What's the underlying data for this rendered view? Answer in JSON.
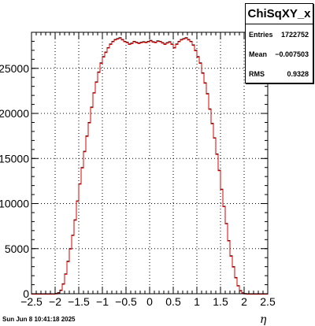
{
  "chart_data": {
    "type": "bar",
    "histogram_name": "ChiSqXY_x",
    "xlabel": "η",
    "ylabel": "",
    "xlim": [
      -2.5,
      2.5
    ],
    "ylim": [
      0,
      29000
    ],
    "grid": true,
    "bin_width": 0.05,
    "x_ticks": [
      "−2.5",
      "−2",
      "−1.5",
      "−1",
      "−0.5",
      "0",
      "0.5",
      "1",
      "1.5",
      "2",
      "2.5"
    ],
    "x_tick_values": [
      -2.5,
      -2,
      -1.5,
      -1,
      -0.5,
      0,
      0.5,
      1,
      1.5,
      2,
      2.5
    ],
    "y_ticks": [
      "0",
      "5000",
      "10000",
      "15000",
      "20000",
      "25000"
    ],
    "y_tick_values": [
      0,
      5000,
      10000,
      15000,
      20000,
      25000
    ],
    "bin_edges_start": -2.5,
    "values": [
      0,
      0,
      0,
      0,
      0,
      0,
      0,
      0,
      0,
      0,
      30,
      120,
      400,
      1100,
      2200,
      3600,
      5000,
      6500,
      8200,
      10300,
      12200,
      14000,
      15800,
      17500,
      19000,
      20700,
      22300,
      23500,
      24600,
      25600,
      26300,
      26800,
      27300,
      27700,
      28000,
      28200,
      28300,
      28400,
      28200,
      28000,
      27900,
      27700,
      27800,
      28000,
      27900,
      27800,
      27900,
      27950,
      27900,
      28000,
      28100,
      27950,
      27900,
      28050,
      28000,
      27850,
      27700,
      27850,
      27950,
      27700,
      27300,
      27700,
      28000,
      28200,
      28300,
      28400,
      28200,
      28000,
      27600,
      27000,
      26300,
      25600,
      24500,
      23400,
      22200,
      20500,
      18900,
      17300,
      15500,
      13700,
      11600,
      9700,
      7800,
      5900,
      4200,
      3000,
      1800,
      900,
      350,
      100,
      20,
      0,
      0,
      0,
      0,
      0,
      0,
      0,
      0,
      0
    ]
  },
  "stats": {
    "title": "ChiSqXY_x",
    "entries_label": "Entries",
    "entries_value": "1722752",
    "mean_label": "Mean",
    "mean_value": "−0.007503",
    "rms_label": "RMS",
    "rms_value": "0.9328"
  },
  "footer": {
    "datestamp": "Sun Jun  8 10:41:18 2025"
  }
}
